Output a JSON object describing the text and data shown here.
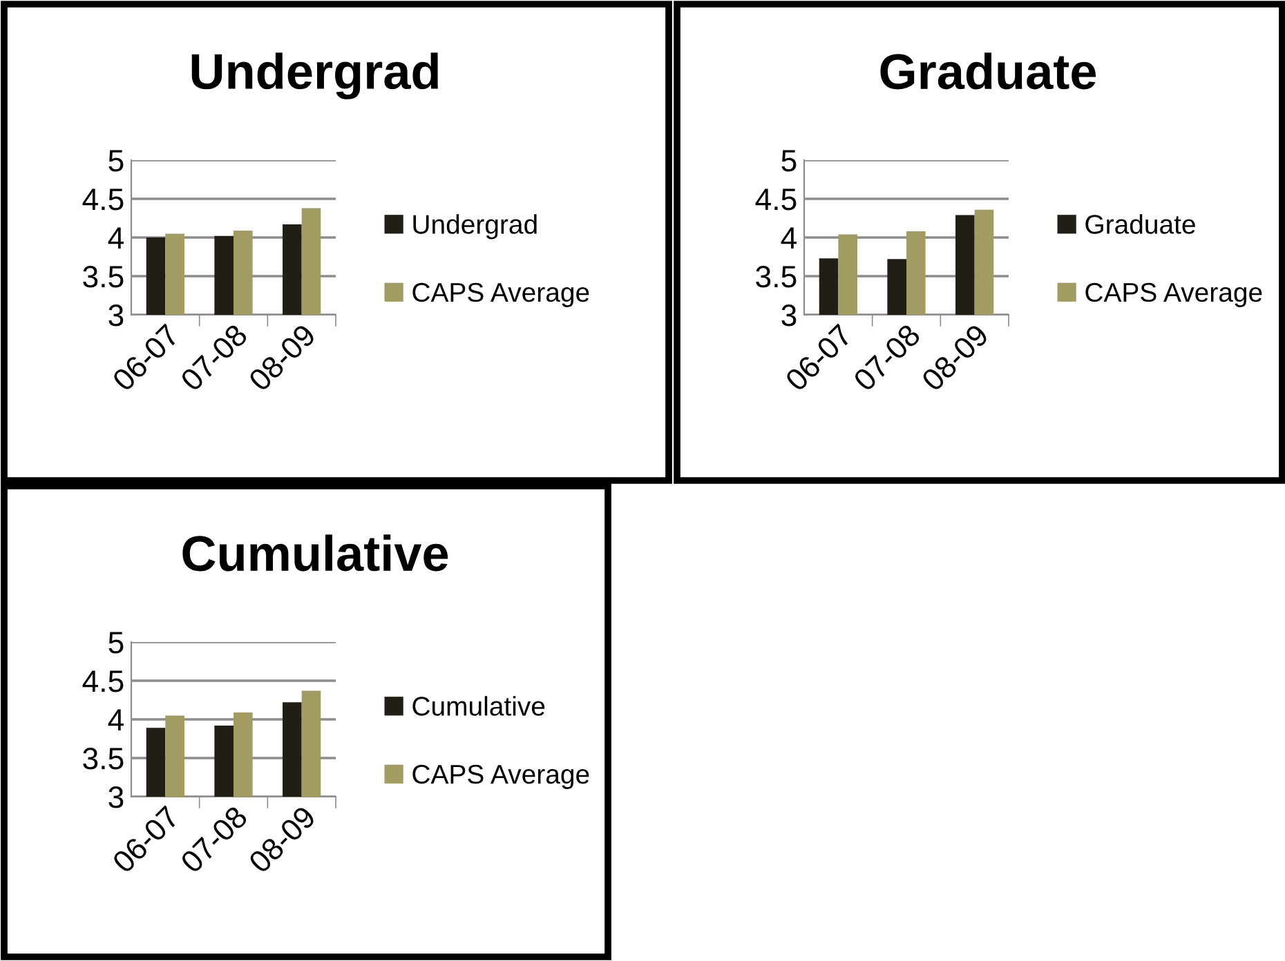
{
  "chart_data": [
    {
      "type": "bar",
      "title": "Undergrad",
      "categories": [
        "06-07",
        "07-08",
        "08-09"
      ],
      "series": [
        {
          "name": "Undergrad",
          "color": "#211f15",
          "values": [
            4.0,
            4.02,
            4.17
          ]
        },
        {
          "name": "CAPS Average",
          "color": "#a39c62",
          "values": [
            4.05,
            4.09,
            4.38
          ]
        }
      ],
      "ylim": [
        3,
        5
      ],
      "yticks": [
        3,
        3.5,
        4,
        4.5,
        5
      ],
      "grid": "y",
      "legend": "right"
    },
    {
      "type": "bar",
      "title": "Graduate",
      "categories": [
        "06-07",
        "07-08",
        "08-09"
      ],
      "series": [
        {
          "name": "Graduate",
          "color": "#211f15",
          "values": [
            3.73,
            3.72,
            4.29
          ]
        },
        {
          "name": "CAPS Average",
          "color": "#a39c62",
          "values": [
            4.04,
            4.08,
            4.36
          ]
        }
      ],
      "ylim": [
        3,
        5
      ],
      "yticks": [
        3,
        3.5,
        4,
        4.5,
        5
      ],
      "grid": "y",
      "legend": "right"
    },
    {
      "type": "bar",
      "title": "Cumulative",
      "categories": [
        "06-07",
        "07-08",
        "08-09"
      ],
      "series": [
        {
          "name": "Cumulative",
          "color": "#211f15",
          "values": [
            3.89,
            3.92,
            4.22
          ]
        },
        {
          "name": "CAPS Average",
          "color": "#a39c62",
          "values": [
            4.05,
            4.09,
            4.37
          ]
        }
      ],
      "ylim": [
        3,
        5
      ],
      "yticks": [
        3,
        3.5,
        4,
        4.5,
        5
      ],
      "grid": "y",
      "legend": "right"
    }
  ]
}
